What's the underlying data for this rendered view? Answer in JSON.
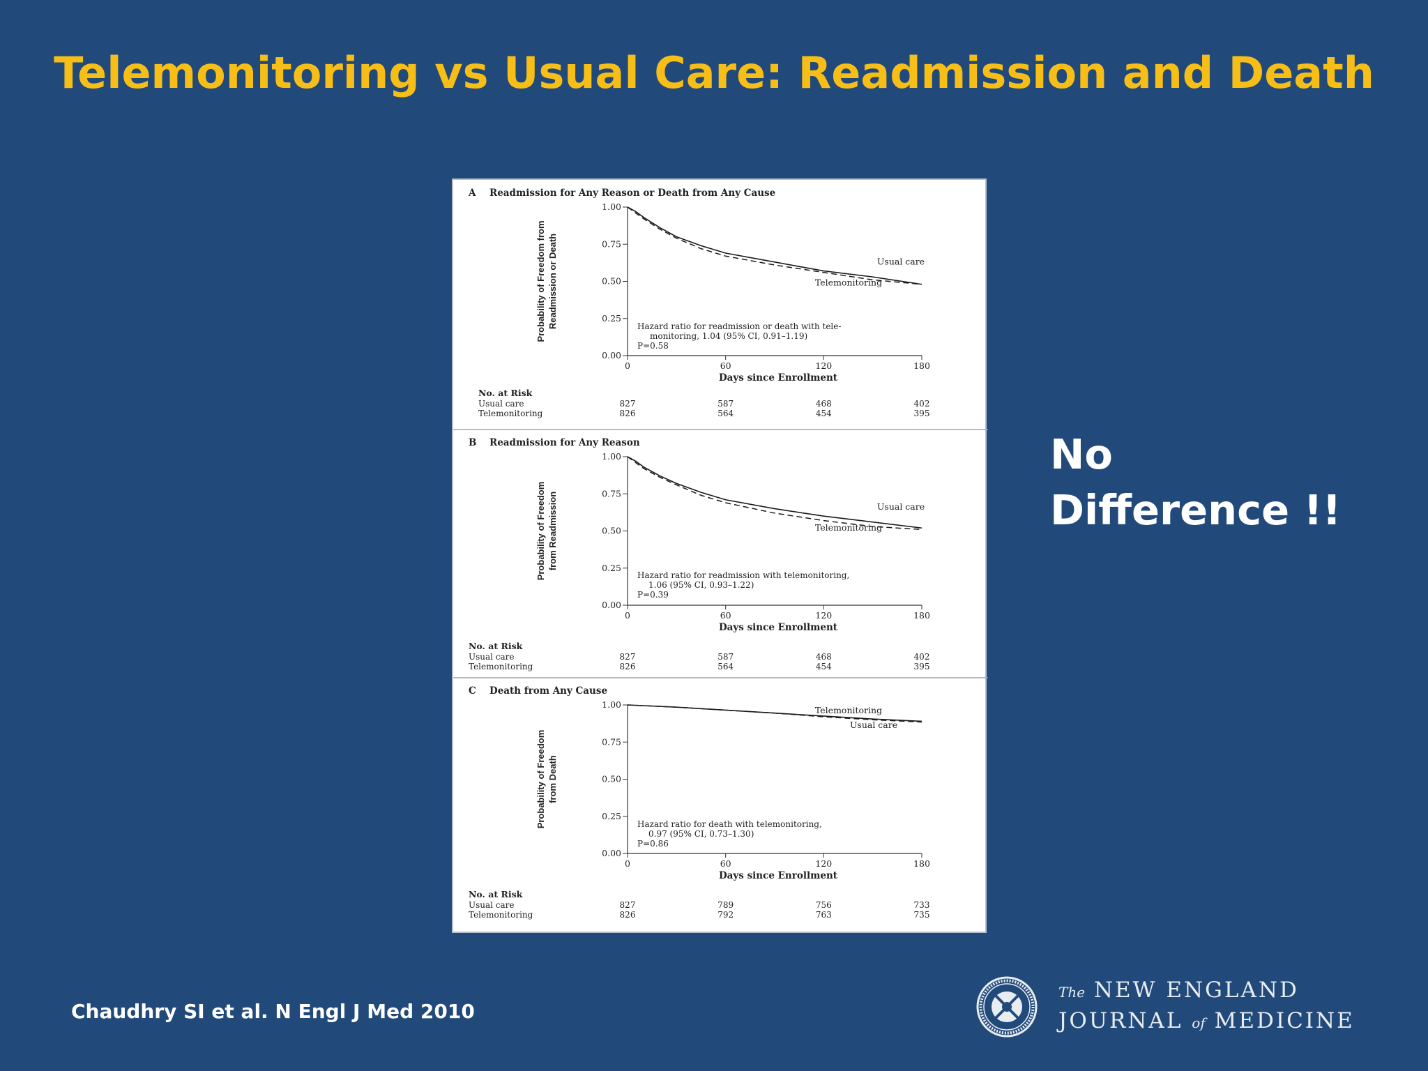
{
  "slide": {
    "title": "Telemonitoring vs Usual Care: Readmission and Death",
    "callout_line1": "No",
    "callout_line2": "Difference !!",
    "citation": "Chaudhry SI et al. N Engl J Med 2010",
    "logo": {
      "the": "The",
      "line1": "NEW ENGLAND",
      "journal": "JOURNAL",
      "of": "of",
      "medicine": "MEDICINE"
    }
  },
  "colors": {
    "background": "#214a7b",
    "title": "#f7be17",
    "text": "#ffffff"
  },
  "chart_data": [
    {
      "type": "line",
      "panel": "A",
      "title": "Readmission for Any Reason or Death from Any Cause",
      "ylabel": [
        "Probability of Freedom from",
        "Readmission or Death"
      ],
      "xlabel": "Days since Enrollment",
      "xlim": [
        0,
        180
      ],
      "ylim": [
        0,
        1
      ],
      "xticks": [
        "0",
        "60",
        "120",
        "180"
      ],
      "yticks": [
        "0.00",
        "0.25",
        "0.50",
        "0.75",
        "1.00"
      ],
      "series": [
        {
          "name": "Usual care",
          "style": "solid",
          "x": [
            0,
            5,
            10,
            20,
            30,
            45,
            60,
            90,
            120,
            150,
            180
          ],
          "y": [
            1.0,
            0.97,
            0.93,
            0.86,
            0.8,
            0.74,
            0.69,
            0.63,
            0.57,
            0.53,
            0.48
          ]
        },
        {
          "name": "Telemonitoring",
          "style": "dashed",
          "x": [
            0,
            5,
            10,
            20,
            30,
            45,
            60,
            90,
            120,
            150,
            180
          ],
          "y": [
            1.0,
            0.96,
            0.92,
            0.85,
            0.79,
            0.72,
            0.67,
            0.61,
            0.56,
            0.51,
            0.48
          ]
        }
      ],
      "series_labels": [
        "Usual care",
        "Telemonitoring"
      ],
      "annotation": [
        "Hazard ratio for readmission or death with tele-",
        "monitoring, 1.04 (95% CI, 0.91–1.19)",
        "P=0.58"
      ],
      "risk_table": {
        "heading": "No. at Risk",
        "rows": [
          {
            "label": "Usual care",
            "values": [
              "827",
              "587",
              "468",
              "402"
            ]
          },
          {
            "label": "Telemonitoring",
            "values": [
              "826",
              "564",
              "454",
              "395"
            ]
          }
        ]
      }
    },
    {
      "type": "line",
      "panel": "B",
      "title": "Readmission for Any Reason",
      "ylabel": [
        "Probability of Freedom",
        "from Readmission"
      ],
      "xlabel": "Days since Enrollment",
      "xlim": [
        0,
        180
      ],
      "ylim": [
        0,
        1
      ],
      "xticks": [
        "0",
        "60",
        "120",
        "180"
      ],
      "yticks": [
        "0.00",
        "0.25",
        "0.50",
        "0.75",
        "1.00"
      ],
      "series": [
        {
          "name": "Usual care",
          "style": "solid",
          "x": [
            0,
            5,
            10,
            20,
            30,
            45,
            60,
            90,
            120,
            150,
            180
          ],
          "y": [
            1.0,
            0.97,
            0.93,
            0.87,
            0.82,
            0.76,
            0.71,
            0.65,
            0.6,
            0.56,
            0.52
          ]
        },
        {
          "name": "Telemonitoring",
          "style": "dashed",
          "x": [
            0,
            5,
            10,
            20,
            30,
            45,
            60,
            90,
            120,
            150,
            180
          ],
          "y": [
            1.0,
            0.96,
            0.92,
            0.86,
            0.81,
            0.74,
            0.69,
            0.62,
            0.57,
            0.53,
            0.51
          ]
        }
      ],
      "series_labels": [
        "Usual care",
        "Telemonitoring"
      ],
      "annotation": [
        "Hazard ratio for readmission with telemonitoring,",
        "1.06 (95% CI, 0.93–1.22)",
        "P=0.39"
      ],
      "risk_table": {
        "heading": "No. at Risk",
        "rows": [
          {
            "label": "Usual care",
            "values": [
              "827",
              "587",
              "468",
              "402"
            ]
          },
          {
            "label": "Telemonitoring",
            "values": [
              "826",
              "564",
              "454",
              "395"
            ]
          }
        ]
      }
    },
    {
      "type": "line",
      "panel": "C",
      "title": "Death from Any Cause",
      "ylabel": [
        "Probability of Freedom",
        "from Death"
      ],
      "xlabel": "Days since Enrollment",
      "xlim": [
        0,
        180
      ],
      "ylim": [
        0,
        1
      ],
      "xticks": [
        "0",
        "60",
        "120",
        "180"
      ],
      "yticks": [
        "0.00",
        "0.25",
        "0.50",
        "0.75",
        "1.00"
      ],
      "series": [
        {
          "name": "Telemonitoring",
          "style": "solid",
          "x": [
            0,
            30,
            60,
            90,
            120,
            150,
            180
          ],
          "y": [
            1.0,
            0.985,
            0.965,
            0.945,
            0.925,
            0.905,
            0.89
          ]
        },
        {
          "name": "Usual care",
          "style": "dashed",
          "x": [
            0,
            30,
            60,
            90,
            120,
            150,
            180
          ],
          "y": [
            1.0,
            0.985,
            0.965,
            0.945,
            0.92,
            0.9,
            0.885
          ]
        }
      ],
      "series_labels": [
        "Telemonitoring",
        "Usual care"
      ],
      "annotation": [
        "Hazard ratio for death with telemonitoring,",
        "0.97 (95% CI, 0.73–1.30)",
        "P=0.86"
      ],
      "risk_table": {
        "heading": "No. at Risk",
        "rows": [
          {
            "label": "Usual care",
            "values": [
              "827",
              "789",
              "756",
              "733"
            ]
          },
          {
            "label": "Telemonitoring",
            "values": [
              "826",
              "792",
              "763",
              "735"
            ]
          }
        ]
      }
    }
  ]
}
